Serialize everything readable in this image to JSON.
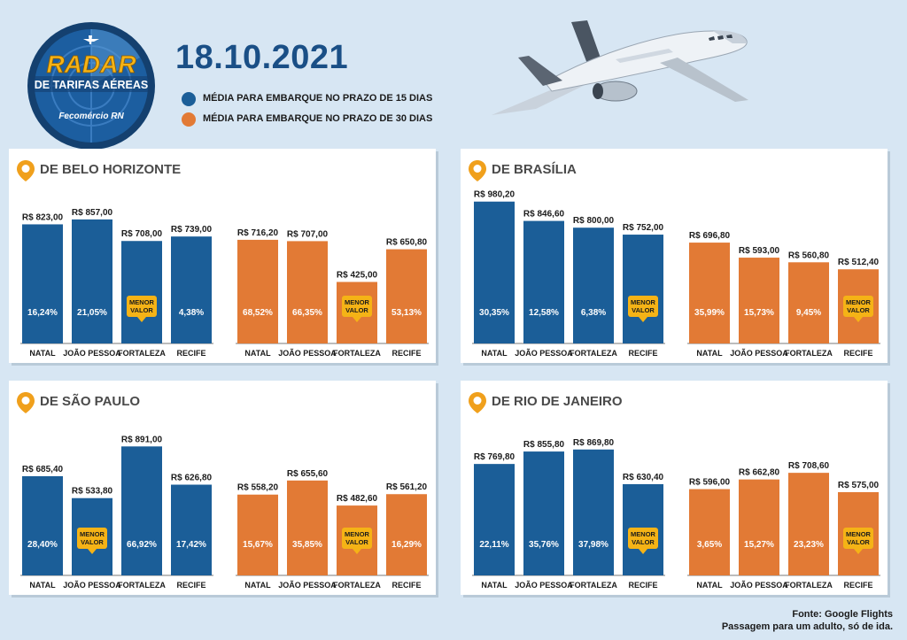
{
  "header": {
    "logo_title": "RADAR",
    "logo_subtitle": "DE TARIFAS AÉREAS",
    "logo_brand": "Fecomércio RN",
    "date": "18.10.2021"
  },
  "legend": [
    {
      "label": "MÉDIA PARA EMBARQUE NO PRAZO DE 15 DIAS",
      "color": "#1b5e98"
    },
    {
      "label": "MÉDIA PARA EMBARQUE NO PRAZO DE 30 DIAS",
      "color": "#e27a35"
    }
  ],
  "colors": {
    "blue": "#1b5e98",
    "orange": "#e27a35",
    "badge": "#f5b316",
    "pin": "#f0a01c"
  },
  "badge_label": [
    "MENOR",
    "VALOR"
  ],
  "chart_data": [
    {
      "type": "bar",
      "title": "DE BELO HORIZONTE",
      "categories": [
        "NATAL",
        "JOÃO PESSOA",
        "FORTALEZA",
        "RECIFE"
      ],
      "series": [
        {
          "name": "MÉDIA PARA EMBARQUE NO PRAZO DE 15 DIAS",
          "values": [
            823.0,
            857.0,
            708.0,
            739.0
          ],
          "value_labels": [
            "R$ 823,00",
            "R$ 857,00",
            "R$ 708,00",
            "R$ 739,00"
          ],
          "percents": [
            "16,24%",
            "21,05%",
            "",
            "4,38%"
          ],
          "lowest_index": 2
        },
        {
          "name": "MÉDIA PARA EMBARQUE NO PRAZO DE 30 DIAS",
          "values": [
            716.2,
            707.0,
            425.0,
            650.8
          ],
          "value_labels": [
            "R$ 716,20",
            "R$ 707,00",
            "R$ 425,00",
            "R$ 650,80"
          ],
          "percents": [
            "68,52%",
            "66,35%",
            "",
            "53,13%"
          ],
          "lowest_index": 2
        }
      ]
    },
    {
      "type": "bar",
      "title": "DE BRASÍLIA",
      "categories": [
        "NATAL",
        "JOÃO PESSOA",
        "FORTALEZA",
        "RECIFE"
      ],
      "series": [
        {
          "name": "MÉDIA PARA EMBARQUE NO PRAZO DE 15 DIAS",
          "values": [
            980.2,
            846.6,
            800.0,
            752.0
          ],
          "value_labels": [
            "R$ 980,20",
            "R$ 846,60",
            "R$ 800,00",
            "R$ 752,00"
          ],
          "percents": [
            "30,35%",
            "12,58%",
            "6,38%",
            ""
          ],
          "lowest_index": 3
        },
        {
          "name": "MÉDIA PARA EMBARQUE NO PRAZO DE 30 DIAS",
          "values": [
            696.8,
            593.0,
            560.8,
            512.4
          ],
          "value_labels": [
            "R$ 696,80",
            "R$ 593,00",
            "R$ 560,80",
            "R$ 512,40"
          ],
          "percents": [
            "35,99%",
            "15,73%",
            "9,45%",
            ""
          ],
          "lowest_index": 3
        }
      ]
    },
    {
      "type": "bar",
      "title": "DE SÃO PAULO",
      "categories": [
        "NATAL",
        "JOÃO PESSOA",
        "FORTALEZA",
        "RECIFE"
      ],
      "series": [
        {
          "name": "MÉDIA PARA EMBARQUE NO PRAZO DE 15 DIAS",
          "values": [
            685.4,
            533.8,
            891.0,
            626.8
          ],
          "value_labels": [
            "R$ 685,40",
            "R$ 533,80",
            "R$ 891,00",
            "R$ 626,80"
          ],
          "percents": [
            "28,40%",
            "",
            "66,92%",
            "17,42%"
          ],
          "lowest_index": 1
        },
        {
          "name": "MÉDIA PARA EMBARQUE NO PRAZO DE 30 DIAS",
          "values": [
            558.2,
            655.6,
            482.6,
            561.2
          ],
          "value_labels": [
            "R$ 558,20",
            "R$ 655,60",
            "R$ 482,60",
            "R$ 561,20"
          ],
          "percents": [
            "15,67%",
            "35,85%",
            "",
            "16,29%"
          ],
          "lowest_index": 2
        }
      ]
    },
    {
      "type": "bar",
      "title": "DE RIO DE JANEIRO",
      "categories": [
        "NATAL",
        "JOÃO PESSOA",
        "FORTALEZA",
        "RECIFE"
      ],
      "series": [
        {
          "name": "MÉDIA PARA EMBARQUE NO PRAZO DE 15 DIAS",
          "values": [
            769.8,
            855.8,
            869.8,
            630.4
          ],
          "value_labels": [
            "R$ 769,80",
            "R$ 855,80",
            "R$ 869,80",
            "R$ 630,40"
          ],
          "percents": [
            "22,11%",
            "35,76%",
            "37,98%",
            ""
          ],
          "lowest_index": 3
        },
        {
          "name": "MÉDIA PARA EMBARQUE NO PRAZO DE 30 DIAS",
          "values": [
            596.0,
            662.8,
            708.6,
            575.0
          ],
          "value_labels": [
            "R$ 596,00",
            "R$ 662,80",
            "R$ 708,60",
            "R$ 575,00"
          ],
          "percents": [
            "3,65%",
            "15,27%",
            "23,23%",
            ""
          ],
          "lowest_index": 3
        }
      ]
    }
  ],
  "footer": {
    "source": "Fonte: Google Flights",
    "note": "Passagem para um adulto, só de ida."
  }
}
